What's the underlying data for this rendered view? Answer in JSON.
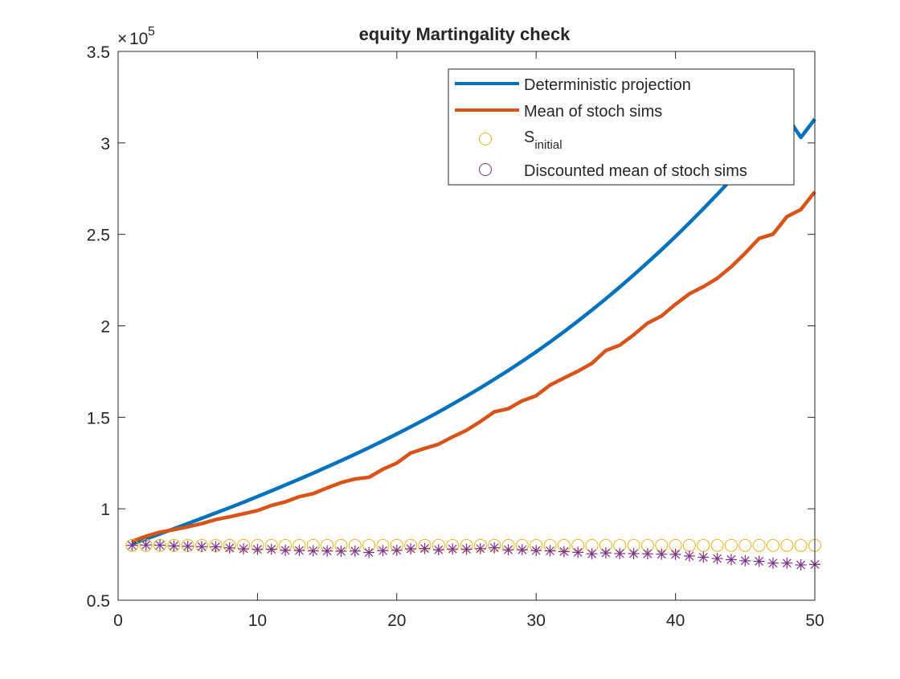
{
  "chart_data": {
    "type": "line",
    "title": "equity Martingality check",
    "xlabel": "",
    "ylabel": "",
    "xlim": [
      0,
      50
    ],
    "ylim": [
      50000,
      350000
    ],
    "y_scale_exponent": "5",
    "y_scale_base": "10",
    "x_ticks": [
      0,
      10,
      20,
      30,
      40,
      50
    ],
    "x_tick_labels": [
      "0",
      "10",
      "20",
      "30",
      "40",
      "50"
    ],
    "y_ticks": [
      50000,
      100000,
      150000,
      200000,
      250000,
      300000,
      350000
    ],
    "y_tick_labels": [
      "0.5",
      "1",
      "1.5",
      "2",
      "2.5",
      "3",
      "3.5"
    ],
    "grid": false,
    "legend_position": "top-right",
    "legend_entries": [
      {
        "label": "Deterministic projection",
        "marker": "line",
        "color": "#0072BD"
      },
      {
        "label": "Mean of stoch sims",
        "marker": "line",
        "color": "#D95319"
      },
      {
        "label_main": "S",
        "label_sub": "initial",
        "marker": "circle",
        "color": "#EDB120"
      },
      {
        "label": "Discounted mean of stoch sims",
        "marker": "circle",
        "color": "#7E2F8E"
      }
    ],
    "x": [
      1,
      2,
      3,
      4,
      5,
      6,
      7,
      8,
      9,
      10,
      11,
      12,
      13,
      14,
      15,
      16,
      17,
      18,
      19,
      20,
      21,
      22,
      23,
      24,
      25,
      26,
      27,
      28,
      29,
      30,
      31,
      32,
      33,
      34,
      35,
      36,
      37,
      38,
      39,
      40,
      41,
      42,
      43,
      44,
      45,
      46,
      47,
      48,
      49,
      50
    ],
    "series": [
      {
        "name": "Deterministic projection",
        "style": "line",
        "color": "#0072BD",
        "values": [
          80800,
          83500,
          86300,
          89100,
          91900,
          94800,
          97700,
          100600,
          103600,
          106700,
          109800,
          113000,
          116200,
          119500,
          122900,
          126300,
          129800,
          133400,
          137100,
          140900,
          144800,
          148800,
          152900,
          157200,
          161600,
          166100,
          170800,
          175600,
          180600,
          185800,
          191200,
          196800,
          202600,
          208600,
          214800,
          221200,
          227800,
          234600,
          241600,
          248800,
          256300,
          264000,
          271900,
          280000,
          288300,
          296800,
          305500,
          314400,
          303000,
          313000
        ]
      },
      {
        "name": "Mean of stoch sims",
        "style": "line",
        "color": "#D95319",
        "values": [
          82200,
          85000,
          87200,
          88600,
          90100,
          91900,
          94100,
          95600,
          97300,
          99000,
          101800,
          103800,
          106600,
          108300,
          111400,
          114300,
          116300,
          117200,
          121600,
          125000,
          130500,
          133000,
          135300,
          139300,
          142900,
          147700,
          153000,
          154700,
          159000,
          161800,
          167600,
          171500,
          175200,
          179500,
          186500,
          189400,
          195100,
          201500,
          205400,
          211800,
          217500,
          221400,
          226000,
          232300,
          239700,
          247800,
          250100,
          259700,
          263600,
          273300
        ]
      },
      {
        "name": "S_initial",
        "style": "circle",
        "color": "#EDB120",
        "values": [
          80000,
          80000,
          80000,
          80000,
          80000,
          80000,
          80000,
          80000,
          80000,
          80000,
          80000,
          80000,
          80000,
          80000,
          80000,
          80000,
          80000,
          80000,
          80000,
          80000,
          80000,
          80000,
          80000,
          80000,
          80000,
          80000,
          80000,
          80000,
          80000,
          80000,
          80000,
          80000,
          80000,
          80000,
          80000,
          80000,
          80000,
          80000,
          80000,
          80000,
          80000,
          80000,
          80000,
          80000,
          80000,
          80000,
          80000,
          80000,
          80000,
          80000
        ]
      },
      {
        "name": "Discounted mean of stoch sims",
        "style": "asterisk",
        "color": "#7E2F8E",
        "values": [
          80000,
          80200,
          80100,
          79700,
          79500,
          79300,
          79200,
          78600,
          78100,
          77800,
          77900,
          77300,
          77200,
          77000,
          76900,
          76800,
          76900,
          76100,
          77100,
          77300,
          78100,
          78300,
          77600,
          78000,
          77900,
          78200,
          78700,
          77600,
          77600,
          77200,
          77000,
          76600,
          76200,
          75400,
          75900,
          75500,
          75500,
          75400,
          75200,
          75100,
          74200,
          73500,
          72800,
          72200,
          71600,
          71300,
          70300,
          70300,
          69300,
          69600
        ]
      }
    ]
  }
}
